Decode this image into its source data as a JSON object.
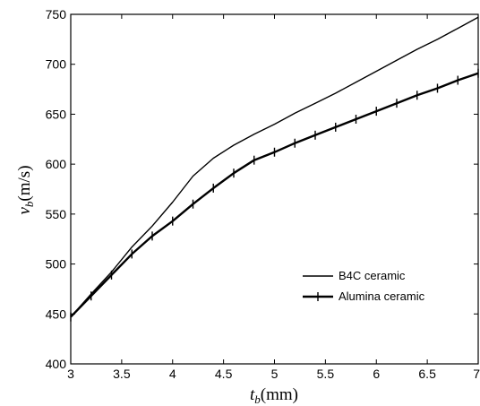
{
  "chart_data": {
    "type": "line",
    "xlabel_main": "t",
    "xlabel_sub": "b",
    "xlabel_unit": "(mm)",
    "ylabel_main": "v",
    "ylabel_sub": "b",
    "ylabel_unit": "(m/s)",
    "xlim": [
      3,
      7
    ],
    "ylim": [
      400,
      750
    ],
    "xticks": [
      3,
      3.5,
      4,
      4.5,
      5,
      5.5,
      6,
      6.5,
      7
    ],
    "xtick_labels": [
      "3",
      "3.5",
      "4",
      "4.5",
      "5",
      "5.5",
      "6",
      "6.5",
      "7"
    ],
    "yticks": [
      400,
      450,
      500,
      550,
      600,
      650,
      700,
      750
    ],
    "ytick_labels": [
      "400",
      "450",
      "500",
      "550",
      "600",
      "650",
      "700",
      "750"
    ],
    "grid": false,
    "legend_position": "lower-right",
    "series": [
      {
        "name": "B4C ceramic",
        "marker": "none",
        "color": "#000000",
        "x": [
          3.0,
          3.2,
          3.4,
          3.6,
          3.8,
          4.0,
          4.2,
          4.4,
          4.6,
          4.8,
          5.0,
          5.2,
          5.4,
          5.6,
          5.8,
          6.0,
          6.2,
          6.4,
          6.6,
          6.8,
          7.0
        ],
        "y": [
          447,
          470,
          492,
          517,
          538,
          562,
          588,
          606,
          619,
          630,
          640,
          651,
          661,
          671,
          682,
          693,
          704,
          715,
          725,
          736,
          747
        ]
      },
      {
        "name": "Alumina ceramic",
        "marker": "plus",
        "color": "#000000",
        "x": [
          3.0,
          3.2,
          3.4,
          3.6,
          3.8,
          4.0,
          4.2,
          4.4,
          4.6,
          4.8,
          5.0,
          5.2,
          5.4,
          5.6,
          5.8,
          6.0,
          6.2,
          6.4,
          6.6,
          6.8,
          7.0
        ],
        "y": [
          447,
          468,
          489,
          510,
          528,
          543,
          560,
          576,
          591,
          604,
          612,
          621,
          629,
          637,
          645,
          653,
          661,
          669,
          676,
          684,
          691
        ]
      }
    ]
  }
}
